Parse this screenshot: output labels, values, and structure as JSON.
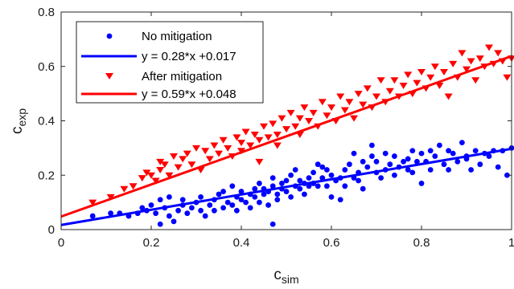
{
  "chart_data": {
    "type": "scatter",
    "xlabel": "c",
    "xlabel_sub": "sim",
    "ylabel": "c",
    "ylabel_sub": "exp",
    "xlim": [
      0,
      1
    ],
    "ylim": [
      0,
      0.8
    ],
    "xticks": [
      "0",
      "0.2",
      "0.4",
      "0.6",
      "0.8",
      "1"
    ],
    "yticks": [
      "0",
      "0.2",
      "0.4",
      "0.6",
      "0.8"
    ],
    "grid": false,
    "legend_position": "top-left",
    "legend": [
      {
        "label": "No mitigation",
        "kind": "marker",
        "marker": "circle",
        "color": "#0000ff"
      },
      {
        "label": "y = 0.28*x +0.017",
        "kind": "line",
        "color": "#0000ff"
      },
      {
        "label": "After mitigation",
        "kind": "marker",
        "marker": "triangle-down",
        "color": "#ff0000"
      },
      {
        "label": "y = 0.59*x +0.048",
        "kind": "line",
        "color": "#ff0000"
      }
    ],
    "series": [
      {
        "name": "No mitigation",
        "marker": "circle",
        "color": "#0000ff",
        "points": [
          [
            0.07,
            0.05
          ],
          [
            0.11,
            0.06
          ],
          [
            0.13,
            0.06
          ],
          [
            0.15,
            0.05
          ],
          [
            0.17,
            0.06
          ],
          [
            0.18,
            0.08
          ],
          [
            0.19,
            0.07
          ],
          [
            0.2,
            0.09
          ],
          [
            0.21,
            0.06
          ],
          [
            0.22,
            0.02
          ],
          [
            0.22,
            0.11
          ],
          [
            0.23,
            0.08
          ],
          [
            0.24,
            0.12
          ],
          [
            0.24,
            0.05
          ],
          [
            0.25,
            0.03
          ],
          [
            0.26,
            0.07
          ],
          [
            0.27,
            0.11
          ],
          [
            0.27,
            0.09
          ],
          [
            0.28,
            0.06
          ],
          [
            0.29,
            0.08
          ],
          [
            0.3,
            0.1
          ],
          [
            0.31,
            0.07
          ],
          [
            0.31,
            0.12
          ],
          [
            0.32,
            0.05
          ],
          [
            0.33,
            0.09
          ],
          [
            0.34,
            0.11
          ],
          [
            0.34,
            0.07
          ],
          [
            0.35,
            0.13
          ],
          [
            0.36,
            0.08
          ],
          [
            0.36,
            0.14
          ],
          [
            0.37,
            0.1
          ],
          [
            0.38,
            0.16
          ],
          [
            0.38,
            0.09
          ],
          [
            0.39,
            0.12
          ],
          [
            0.39,
            0.07
          ],
          [
            0.4,
            0.14
          ],
          [
            0.4,
            0.11
          ],
          [
            0.41,
            0.1
          ],
          [
            0.42,
            0.13
          ],
          [
            0.42,
            0.08
          ],
          [
            0.43,
            0.15
          ],
          [
            0.43,
            0.12
          ],
          [
            0.44,
            0.1
          ],
          [
            0.44,
            0.17
          ],
          [
            0.45,
            0.13
          ],
          [
            0.45,
            0.15
          ],
          [
            0.46,
            0.09
          ],
          [
            0.46,
            0.14
          ],
          [
            0.47,
            0.16
          ],
          [
            0.47,
            0.19
          ],
          [
            0.47,
            0.02
          ],
          [
            0.48,
            0.13
          ],
          [
            0.48,
            0.11
          ],
          [
            0.49,
            0.15
          ],
          [
            0.49,
            0.17
          ],
          [
            0.5,
            0.14
          ],
          [
            0.5,
            0.18
          ],
          [
            0.51,
            0.12
          ],
          [
            0.51,
            0.2
          ],
          [
            0.52,
            0.16
          ],
          [
            0.52,
            0.22
          ],
          [
            0.53,
            0.15
          ],
          [
            0.53,
            0.18
          ],
          [
            0.54,
            0.17
          ],
          [
            0.54,
            0.13
          ],
          [
            0.55,
            0.19
          ],
          [
            0.55,
            0.16
          ],
          [
            0.56,
            0.21
          ],
          [
            0.56,
            0.17
          ],
          [
            0.57,
            0.24
          ],
          [
            0.57,
            0.16
          ],
          [
            0.58,
            0.19
          ],
          [
            0.58,
            0.23
          ],
          [
            0.59,
            0.16
          ],
          [
            0.59,
            0.22
          ],
          [
            0.6,
            0.2
          ],
          [
            0.6,
            0.12
          ],
          [
            0.61,
            0.18
          ],
          [
            0.62,
            0.19
          ],
          [
            0.62,
            0.11
          ],
          [
            0.63,
            0.22
          ],
          [
            0.63,
            0.16
          ],
          [
            0.64,
            0.24
          ],
          [
            0.65,
            0.19
          ],
          [
            0.65,
            0.28
          ],
          [
            0.66,
            0.21
          ],
          [
            0.66,
            0.18
          ],
          [
            0.67,
            0.25
          ],
          [
            0.67,
            0.15
          ],
          [
            0.68,
            0.23
          ],
          [
            0.69,
            0.27
          ],
          [
            0.69,
            0.31
          ],
          [
            0.7,
            0.21
          ],
          [
            0.7,
            0.25
          ],
          [
            0.71,
            0.19
          ],
          [
            0.72,
            0.22
          ],
          [
            0.72,
            0.28
          ],
          [
            0.73,
            0.24
          ],
          [
            0.74,
            0.2
          ],
          [
            0.74,
            0.27
          ],
          [
            0.75,
            0.23
          ],
          [
            0.76,
            0.25
          ],
          [
            0.77,
            0.22
          ],
          [
            0.77,
            0.26
          ],
          [
            0.78,
            0.29
          ],
          [
            0.78,
            0.21
          ],
          [
            0.79,
            0.25
          ],
          [
            0.8,
            0.28
          ],
          [
            0.8,
            0.17
          ],
          [
            0.81,
            0.25
          ],
          [
            0.82,
            0.22
          ],
          [
            0.82,
            0.29
          ],
          [
            0.83,
            0.27
          ],
          [
            0.84,
            0.31
          ],
          [
            0.85,
            0.24
          ],
          [
            0.86,
            0.29
          ],
          [
            0.86,
            0.22
          ],
          [
            0.87,
            0.28
          ],
          [
            0.88,
            0.25
          ],
          [
            0.89,
            0.32
          ],
          [
            0.9,
            0.27
          ],
          [
            0.9,
            0.26
          ],
          [
            0.91,
            0.22
          ],
          [
            0.92,
            0.29
          ],
          [
            0.93,
            0.24
          ],
          [
            0.94,
            0.28
          ],
          [
            0.95,
            0.27
          ],
          [
            0.96,
            0.29
          ],
          [
            0.97,
            0.23
          ],
          [
            0.98,
            0.29
          ],
          [
            0.99,
            0.2
          ],
          [
            1.0,
            0.3
          ]
        ]
      },
      {
        "name": "After mitigation",
        "marker": "triangle-down",
        "color": "#ff0000",
        "points": [
          [
            0.07,
            0.1
          ],
          [
            0.11,
            0.12
          ],
          [
            0.14,
            0.15
          ],
          [
            0.16,
            0.16
          ],
          [
            0.18,
            0.19
          ],
          [
            0.19,
            0.21
          ],
          [
            0.2,
            0.2
          ],
          [
            0.21,
            0.18
          ],
          [
            0.22,
            0.22
          ],
          [
            0.22,
            0.25
          ],
          [
            0.23,
            0.24
          ],
          [
            0.24,
            0.2
          ],
          [
            0.25,
            0.27
          ],
          [
            0.26,
            0.23
          ],
          [
            0.27,
            0.26
          ],
          [
            0.28,
            0.28
          ],
          [
            0.29,
            0.24
          ],
          [
            0.3,
            0.3
          ],
          [
            0.31,
            0.22
          ],
          [
            0.32,
            0.29
          ],
          [
            0.33,
            0.26
          ],
          [
            0.34,
            0.31
          ],
          [
            0.35,
            0.28
          ],
          [
            0.36,
            0.33
          ],
          [
            0.37,
            0.3
          ],
          [
            0.38,
            0.27
          ],
          [
            0.39,
            0.34
          ],
          [
            0.4,
            0.29
          ],
          [
            0.4,
            0.32
          ],
          [
            0.41,
            0.36
          ],
          [
            0.42,
            0.31
          ],
          [
            0.43,
            0.35
          ],
          [
            0.44,
            0.33
          ],
          [
            0.44,
            0.25
          ],
          [
            0.45,
            0.38
          ],
          [
            0.46,
            0.34
          ],
          [
            0.47,
            0.39
          ],
          [
            0.48,
            0.35
          ],
          [
            0.48,
            0.31
          ],
          [
            0.49,
            0.41
          ],
          [
            0.5,
            0.37
          ],
          [
            0.51,
            0.43
          ],
          [
            0.52,
            0.38
          ],
          [
            0.53,
            0.41
          ],
          [
            0.53,
            0.35
          ],
          [
            0.54,
            0.45
          ],
          [
            0.55,
            0.4
          ],
          [
            0.56,
            0.43
          ],
          [
            0.57,
            0.38
          ],
          [
            0.58,
            0.47
          ],
          [
            0.59,
            0.42
          ],
          [
            0.6,
            0.45
          ],
          [
            0.61,
            0.4
          ],
          [
            0.62,
            0.49
          ],
          [
            0.63,
            0.44
          ],
          [
            0.64,
            0.47
          ],
          [
            0.65,
            0.41
          ],
          [
            0.66,
            0.5
          ],
          [
            0.67,
            0.46
          ],
          [
            0.68,
            0.52
          ],
          [
            0.69,
            0.45
          ],
          [
            0.7,
            0.49
          ],
          [
            0.71,
            0.55
          ],
          [
            0.72,
            0.47
          ],
          [
            0.73,
            0.51
          ],
          [
            0.74,
            0.55
          ],
          [
            0.75,
            0.49
          ],
          [
            0.76,
            0.53
          ],
          [
            0.77,
            0.57
          ],
          [
            0.78,
            0.5
          ],
          [
            0.79,
            0.54
          ],
          [
            0.8,
            0.58
          ],
          [
            0.81,
            0.52
          ],
          [
            0.82,
            0.56
          ],
          [
            0.83,
            0.6
          ],
          [
            0.84,
            0.53
          ],
          [
            0.85,
            0.58
          ],
          [
            0.86,
            0.49
          ],
          [
            0.87,
            0.61
          ],
          [
            0.88,
            0.56
          ],
          [
            0.89,
            0.65
          ],
          [
            0.9,
            0.59
          ],
          [
            0.91,
            0.62
          ],
          [
            0.92,
            0.55
          ],
          [
            0.93,
            0.63
          ],
          [
            0.94,
            0.6
          ],
          [
            0.95,
            0.67
          ],
          [
            0.96,
            0.61
          ],
          [
            0.97,
            0.65
          ],
          [
            0.98,
            0.62
          ],
          [
            0.99,
            0.56
          ],
          [
            1.0,
            0.63
          ]
        ]
      }
    ],
    "fits": [
      {
        "name": "y = 0.28*x +0.017",
        "slope": 0.28,
        "intercept": 0.017,
        "color": "#0000ff"
      },
      {
        "name": "y = 0.59*x +0.048",
        "slope": 0.59,
        "intercept": 0.048,
        "color": "#ff0000"
      }
    ]
  }
}
